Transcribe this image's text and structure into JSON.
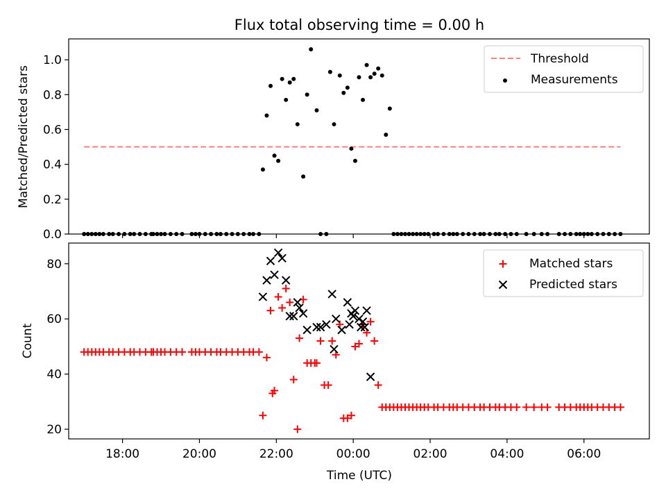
{
  "figure": {
    "title": "Flux total observing time = 0.00 h",
    "xlabel": "Time (UTC)",
    "xticks": [
      {
        "h": 18,
        "label": "18:00"
      },
      {
        "h": 20,
        "label": "20:00"
      },
      {
        "h": 22,
        "label": "22:00"
      },
      {
        "h": 24,
        "label": "00:00"
      },
      {
        "h": 26,
        "label": "02:00"
      },
      {
        "h": 28,
        "label": "04:00"
      },
      {
        "h": 30,
        "label": "06:00"
      }
    ],
    "xlim": [
      16.6,
      31.7
    ]
  },
  "colors": {
    "threshold": "#ff7f7f",
    "measurements": "#000000",
    "matched": "#ff0000",
    "predicted": "#000000"
  },
  "chart_data": [
    {
      "type": "scatter",
      "ylabel": "Matched/Predicted stars",
      "ylim": [
        0,
        1.12
      ],
      "yticks": [
        0.0,
        0.2,
        0.4,
        0.6,
        0.8,
        1.0
      ],
      "legend": {
        "placement": "top-right"
      },
      "threshold": {
        "name": "Threshold",
        "value": 0.5,
        "x_range": [
          17.0,
          30.95
        ],
        "style": "dashed"
      },
      "series": [
        {
          "name": "Measurements",
          "marker": "dot",
          "x_hours": [
            17.0,
            17.1,
            17.2,
            17.3,
            17.4,
            17.5,
            17.65,
            17.75,
            17.9,
            18.05,
            18.2,
            18.3,
            18.45,
            18.6,
            18.75,
            18.8,
            18.9,
            19.0,
            19.1,
            19.25,
            19.4,
            19.55,
            19.8,
            19.9,
            20.0,
            20.15,
            20.3,
            20.45,
            20.55,
            20.7,
            20.85,
            21.0,
            21.15,
            21.3,
            21.4,
            21.55,
            21.65,
            21.75,
            21.85,
            21.95,
            22.05,
            22.15,
            22.25,
            22.35,
            22.45,
            22.55,
            22.7,
            22.8,
            22.9,
            23.05,
            23.15,
            23.3,
            23.4,
            23.5,
            23.65,
            23.75,
            23.85,
            23.95,
            24.05,
            24.15,
            24.25,
            24.35,
            24.45,
            24.55,
            24.65,
            24.75,
            24.85,
            24.95,
            25.05,
            25.15,
            25.25,
            25.35,
            25.45,
            25.55,
            25.65,
            25.75,
            25.85,
            25.95,
            26.1,
            26.2,
            26.35,
            26.5,
            26.6,
            26.7,
            26.85,
            27.0,
            27.15,
            27.3,
            27.4,
            27.55,
            27.7,
            27.8,
            27.95,
            28.1,
            28.25,
            28.5,
            28.7,
            28.9,
            29.05,
            29.35,
            29.5,
            29.65,
            29.8,
            29.9,
            30.0,
            30.1,
            30.2,
            30.35,
            30.5,
            30.65,
            30.8,
            30.95
          ],
          "y": [
            0,
            0,
            0,
            0,
            0,
            0,
            0,
            0,
            0,
            0,
            0,
            0,
            0,
            0,
            0,
            0,
            0,
            0,
            0,
            0,
            0,
            0,
            0,
            0,
            0,
            0,
            0,
            0,
            0,
            0,
            0,
            0,
            0,
            0,
            0,
            0,
            0.37,
            0.68,
            0.85,
            0.45,
            0.42,
            0.89,
            0.77,
            0.87,
            0.89,
            0.63,
            0.33,
            0.8,
            1.06,
            0.71,
            0,
            0,
            0.93,
            0.63,
            0.91,
            0.81,
            0.84,
            0.49,
            0.42,
            0.9,
            0.77,
            0.97,
            0.9,
            0.92,
            0.95,
            0.91,
            0.57,
            0.72,
            0,
            0,
            0,
            0,
            0,
            0,
            0,
            0,
            0,
            0,
            0,
            0,
            0,
            0,
            0,
            0,
            0,
            0,
            0,
            0,
            0,
            0,
            0,
            0,
            0,
            0,
            0,
            0,
            0,
            0,
            0,
            0,
            0,
            0,
            0,
            0,
            0,
            0,
            0,
            0,
            0,
            0,
            0,
            0
          ]
        }
      ]
    },
    {
      "type": "scatter",
      "ylabel": "Count",
      "ylim": [
        16.5,
        87.5
      ],
      "yticks": [
        20,
        40,
        60,
        80
      ],
      "legend": {
        "placement": "top-right"
      },
      "series": [
        {
          "name": "Matched stars",
          "marker": "plus",
          "x_hours": [
            17.0,
            17.1,
            17.2,
            17.3,
            17.4,
            17.5,
            17.65,
            17.75,
            17.9,
            18.05,
            18.2,
            18.3,
            18.45,
            18.6,
            18.75,
            18.8,
            18.9,
            19.0,
            19.1,
            19.25,
            19.4,
            19.55,
            19.8,
            19.9,
            20.0,
            20.15,
            20.3,
            20.45,
            20.55,
            20.7,
            20.85,
            21.0,
            21.15,
            21.3,
            21.4,
            21.55,
            21.65,
            21.75,
            21.85,
            21.9,
            21.95,
            22.05,
            22.15,
            22.25,
            22.35,
            22.45,
            22.55,
            22.6,
            22.7,
            22.8,
            22.9,
            23.0,
            23.05,
            23.15,
            23.25,
            23.35,
            23.45,
            23.55,
            23.65,
            23.75,
            23.85,
            23.95,
            24.05,
            24.15,
            24.25,
            24.35,
            24.45,
            24.55,
            24.65,
            24.75,
            24.85,
            24.95,
            25.05,
            25.15,
            25.25,
            25.35,
            25.45,
            25.55,
            25.65,
            25.75,
            25.85,
            25.95,
            26.1,
            26.2,
            26.35,
            26.5,
            26.6,
            26.7,
            26.85,
            27.0,
            27.15,
            27.3,
            27.4,
            27.55,
            27.7,
            27.8,
            27.95,
            28.1,
            28.25,
            28.5,
            28.7,
            28.9,
            29.05,
            29.35,
            29.5,
            29.65,
            29.8,
            29.9,
            30.0,
            30.1,
            30.2,
            30.35,
            30.5,
            30.65,
            30.8,
            30.95
          ],
          "y": [
            48,
            48,
            48,
            48,
            48,
            48,
            48,
            48,
            48,
            48,
            48,
            48,
            48,
            48,
            48,
            48,
            48,
            48,
            48,
            48,
            48,
            48,
            48,
            48,
            48,
            48,
            48,
            48,
            48,
            48,
            48,
            48,
            48,
            48,
            48,
            48,
            25,
            46,
            63,
            33,
            34,
            68,
            64,
            71,
            66,
            38,
            20,
            53,
            67,
            44,
            44,
            44,
            44,
            52,
            36,
            36,
            52,
            47,
            58,
            24,
            24,
            25,
            50,
            51,
            58,
            55,
            59,
            52,
            36,
            28,
            28,
            28,
            28,
            28,
            28,
            28,
            28,
            28,
            28,
            28,
            28,
            28,
            28,
            28,
            28,
            28,
            28,
            28,
            28,
            28,
            28,
            28,
            28,
            28,
            28,
            28,
            28,
            28,
            28,
            28,
            28,
            28,
            28,
            28,
            28,
            28,
            28,
            28,
            28,
            28,
            28,
            28,
            28,
            28,
            28,
            28
          ]
        },
        {
          "name": "Predicted stars",
          "marker": "x",
          "x_hours": [
            21.65,
            21.75,
            21.85,
            21.95,
            22.05,
            22.15,
            22.25,
            22.35,
            22.45,
            22.55,
            22.6,
            22.7,
            22.8,
            23.05,
            23.15,
            23.3,
            23.45,
            23.5,
            23.55,
            23.7,
            23.85,
            23.9,
            23.95,
            24.0,
            24.05,
            24.15,
            24.2,
            24.25,
            24.3,
            24.35,
            24.45
          ],
          "y": [
            68,
            74,
            81,
            76,
            84,
            82,
            74,
            61,
            61,
            66,
            64,
            62,
            56,
            57,
            57,
            58,
            69,
            49,
            60,
            56,
            66,
            58,
            62,
            61,
            63,
            60,
            57,
            59,
            57,
            63,
            39
          ]
        }
      ]
    }
  ]
}
